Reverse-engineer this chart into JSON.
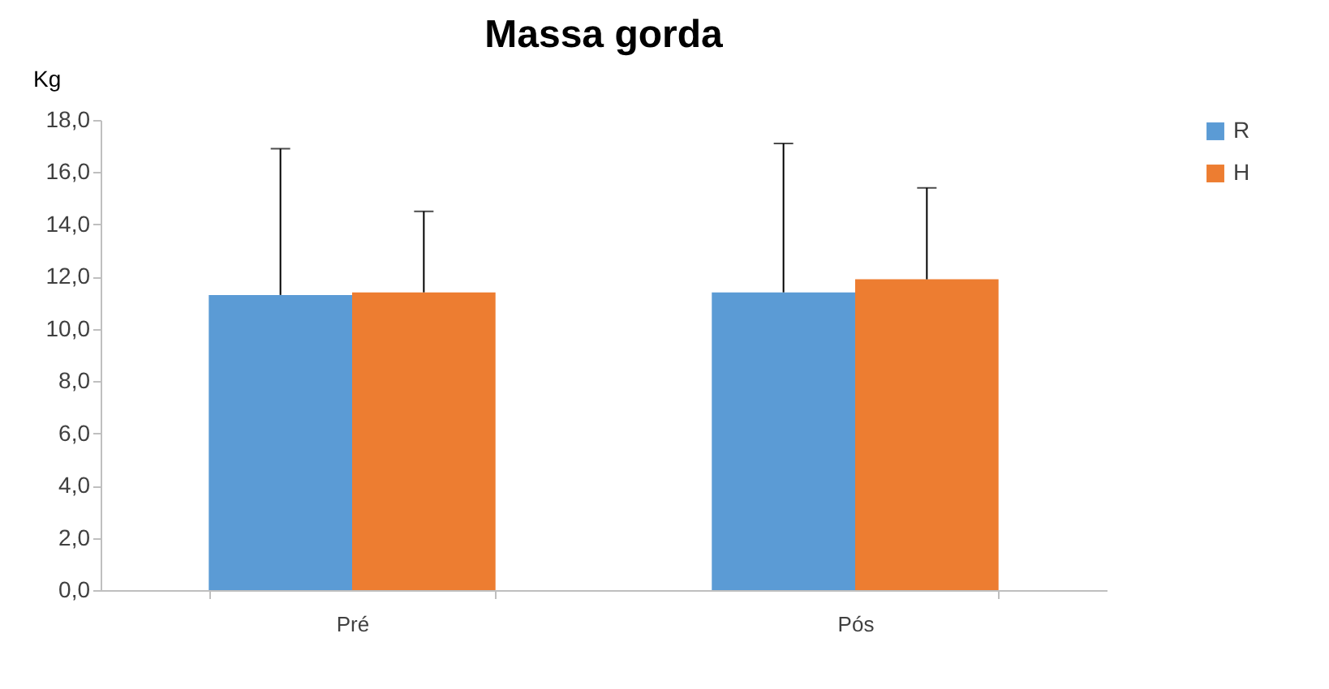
{
  "chart_data": {
    "type": "bar",
    "title": "Massa gorda",
    "ylabel": "Kg",
    "categories": [
      "Pré",
      "Pós"
    ],
    "series": [
      {
        "name": "R",
        "color": "#5b9bd5",
        "values": [
          11.3,
          11.4
        ],
        "errors": [
          [
            11.3,
            16.9
          ],
          [
            11.4,
            17.1
          ]
        ]
      },
      {
        "name": "H",
        "color": "#ed7d31",
        "values": [
          11.4,
          11.9
        ],
        "errors": [
          [
            11.4,
            14.5
          ],
          [
            11.9,
            15.4
          ]
        ]
      }
    ],
    "ylim": [
      0,
      18
    ],
    "yticks": [
      {
        "value": 0,
        "label": "0,0"
      },
      {
        "value": 2,
        "label": "2,0"
      },
      {
        "value": 4,
        "label": "4,0"
      },
      {
        "value": 6,
        "label": "6,0"
      },
      {
        "value": 8,
        "label": "8,0"
      },
      {
        "value": 10,
        "label": "10,0"
      },
      {
        "value": 12,
        "label": "12,0"
      },
      {
        "value": 14,
        "label": "14,0"
      },
      {
        "value": 16,
        "label": "16,0"
      },
      {
        "value": 18,
        "label": "18,0"
      }
    ],
    "grid": false,
    "legend": "right"
  }
}
